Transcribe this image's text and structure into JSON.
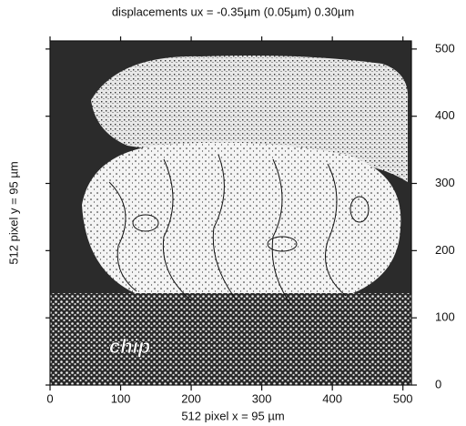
{
  "chart_data": {
    "type": "image",
    "title": "displacements ux = -0.35µm (0.05µm) 0.30µm",
    "xlabel": "512 pixel x = 95 µm",
    "ylabel": "512 pixel y = 95 µm",
    "annotation": "chip",
    "xlim": [
      0,
      512
    ],
    "ylim": [
      0,
      512
    ],
    "xticks": [
      0,
      100,
      200,
      300,
      400,
      500
    ],
    "yticks": [
      0,
      100,
      200,
      300,
      400,
      500
    ],
    "y_axis_side": "right"
  }
}
